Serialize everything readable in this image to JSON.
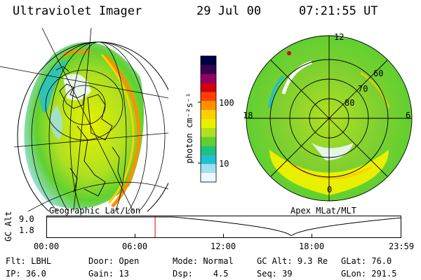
{
  "header": {
    "instrument": "Ultraviolet Imager",
    "date": "29 Jul 00",
    "time": "07:21:55 UT"
  },
  "left_panel": {
    "label": "Geographic Lat/Lon"
  },
  "right_panel": {
    "label": "Apex MLat/MLT",
    "lat_labels": [
      "60",
      "70",
      "80"
    ],
    "mlt_labels": {
      "top": "12",
      "left": "18",
      "right": "6",
      "bottom": "0"
    }
  },
  "colorbar": {
    "unit": "photon cm⁻²s⁻¹",
    "ticks": [
      "100",
      "10"
    ],
    "colors": [
      "#000040",
      "#3a0050",
      "#900060",
      "#d00010",
      "#ff4000",
      "#ff9000",
      "#ffd000",
      "#e8f000",
      "#b0e020",
      "#60d030",
      "#20c080",
      "#20c0d0",
      "#a0e0f0",
      "#f0f8ff"
    ]
  },
  "altitude_plot": {
    "ylabel": "GC Alt",
    "y_max": "9.0",
    "y_min": "1.8",
    "x_ticks": [
      "00:00",
      "06:00",
      "12:00",
      "18:00",
      "23:59"
    ],
    "marker_time_hours": 7.37,
    "marker_color": "#e00000"
  },
  "status": {
    "row1": [
      {
        "label": "Flt:",
        "value": "LBHL"
      },
      {
        "label": "Door:",
        "value": "Open"
      },
      {
        "label": "Mode:",
        "value": "Normal"
      },
      {
        "label": "GC Alt:",
        "value": "9.3 Re"
      },
      {
        "label": "GLat:",
        "value": "76.0"
      }
    ],
    "row2": [
      {
        "label": "IP:",
        "value": "36.0"
      },
      {
        "label": "Gain:",
        "value": "13"
      },
      {
        "label": "Dsp:",
        "value": "4.5"
      },
      {
        "label": "Seq:",
        "value": "39"
      },
      {
        "label": "GLon:",
        "value": "291.5"
      }
    ]
  }
}
